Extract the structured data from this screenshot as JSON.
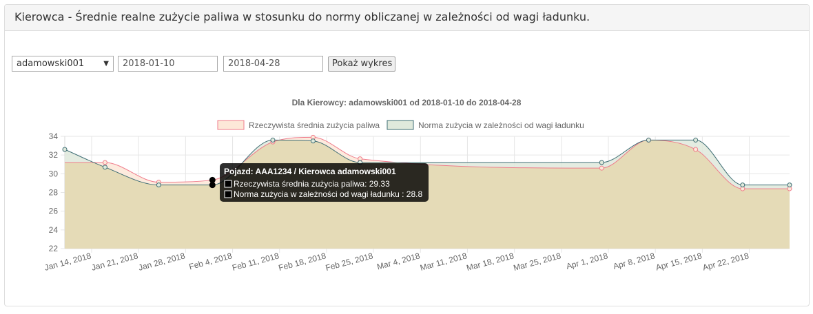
{
  "panel": {
    "title": "Kierowca - Średnie realne zużycie paliwa w stosunku do normy obliczanej w zależności od wagi ładunku."
  },
  "controls": {
    "driver_value": "adamowski001",
    "date_from": "2018-01-10",
    "date_to": "2018-04-28",
    "show_button": "Pokaż wykres"
  },
  "tooltip": {
    "title": "Pojazd: AAA1234 / Kierowca adamowski001",
    "line1": "Rzeczywista średnia zużycia paliwa: 29.33",
    "line2": "Norma zużycia w zależności od wagi ładunku  : 28.8"
  },
  "colors": {
    "series1_line": "#ef7b8b",
    "series1_fill": "#fde8d8",
    "series2_line": "#3e6d74",
    "series2_fill": "#dfe9dc",
    "overlap_fill": "#e5dbb7"
  },
  "chart_data": {
    "type": "area",
    "title": "Dla Kierowcy: adamowski001 od 2018-01-10 do 2018-04-28",
    "xlabel": "",
    "ylabel": "",
    "xlim": [
      "2018-01-10",
      "2018-04-28"
    ],
    "ylim": [
      22,
      34
    ],
    "y_ticks": [
      22,
      24,
      26,
      28,
      30,
      32,
      34
    ],
    "x_ticks": [
      "Jan 14, 2018",
      "Jan 21, 2018",
      "Jan 28, 2018",
      "Feb 4, 2018",
      "Feb 11, 2018",
      "Feb 18, 2018",
      "Feb 25, 2018",
      "Mar 4, 2018",
      "Mar 11, 2018",
      "Mar 18, 2018",
      "Mar 25, 2018",
      "Apr 1, 2018",
      "Apr 8, 2018",
      "Apr 15, 2018",
      "Apr 22, 2018"
    ],
    "grid": true,
    "legend_position": "top",
    "series": [
      {
        "name": "Rzeczywista średnia zużycia paliwa",
        "points": [
          {
            "x": "2018-01-10",
            "y": 31.2
          },
          {
            "x": "2018-01-16",
            "y": 31.2
          },
          {
            "x": "2018-01-24",
            "y": 29.1
          },
          {
            "x": "2018-02-01",
            "y": 29.33
          },
          {
            "x": "2018-02-10",
            "y": 33.4
          },
          {
            "x": "2018-02-16",
            "y": 33.9
          },
          {
            "x": "2018-02-23",
            "y": 31.6
          },
          {
            "x": "2018-03-31",
            "y": 30.6
          },
          {
            "x": "2018-04-07",
            "y": 33.6
          },
          {
            "x": "2018-04-14",
            "y": 32.6
          },
          {
            "x": "2018-04-21",
            "y": 28.4
          },
          {
            "x": "2018-04-28",
            "y": 28.4
          }
        ]
      },
      {
        "name": "Norma zużycia w zależności od wagi ładunku",
        "points": [
          {
            "x": "2018-01-10",
            "y": 32.6
          },
          {
            "x": "2018-01-16",
            "y": 30.7
          },
          {
            "x": "2018-01-24",
            "y": 28.8
          },
          {
            "x": "2018-02-01",
            "y": 28.8
          },
          {
            "x": "2018-02-10",
            "y": 33.6
          },
          {
            "x": "2018-02-16",
            "y": 33.5
          },
          {
            "x": "2018-02-23",
            "y": 31.2
          },
          {
            "x": "2018-03-31",
            "y": 31.2
          },
          {
            "x": "2018-04-07",
            "y": 33.6
          },
          {
            "x": "2018-04-14",
            "y": 33.6
          },
          {
            "x": "2018-04-21",
            "y": 28.8
          },
          {
            "x": "2018-04-28",
            "y": 28.8
          }
        ]
      }
    ]
  }
}
